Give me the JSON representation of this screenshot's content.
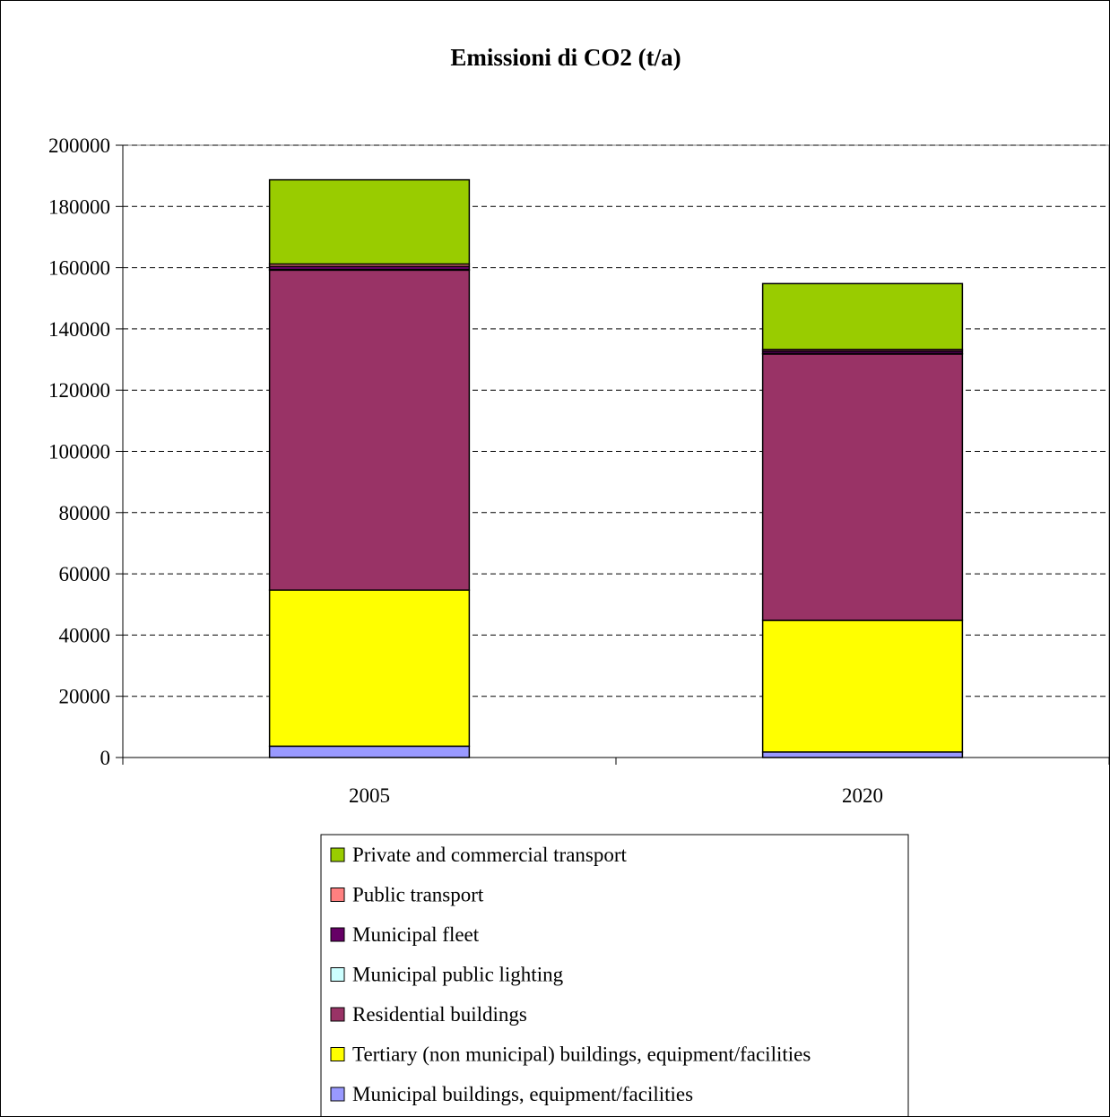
{
  "chart_data": {
    "type": "bar",
    "stacked": true,
    "title": "Emissioni di CO2 (t/a)",
    "xlabel": "",
    "ylabel": "",
    "categories": [
      "2005",
      "2020"
    ],
    "ylim": [
      0,
      200000
    ],
    "ytick_step": 20000,
    "grid": true,
    "legend_position": "bottom",
    "series": [
      {
        "name": "Municipal buildings, equipment/facilities",
        "color": "#9999ff",
        "values": [
          3700,
          1800
        ]
      },
      {
        "name": "Tertiary (non municipal) buildings, equipment/facilities",
        "color": "#ffff00",
        "values": [
          51000,
          43000
        ]
      },
      {
        "name": "Residential buildings",
        "color": "#993366",
        "values": [
          104500,
          87000
        ]
      },
      {
        "name": "Municipal public lighting",
        "color": "#ccffff",
        "values": [
          200,
          150
        ]
      },
      {
        "name": "Municipal fleet",
        "color": "#660066",
        "values": [
          1000,
          800
        ]
      },
      {
        "name": "Public transport",
        "color": "#ff8080",
        "values": [
          800,
          550
        ]
      },
      {
        "name": "Private and commercial transport",
        "color": "#99cc00",
        "values": [
          27500,
          21500
        ]
      }
    ]
  }
}
